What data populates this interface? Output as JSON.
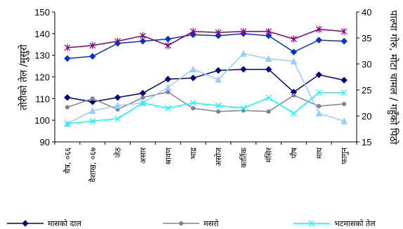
{
  "chart_data": {
    "type": "line",
    "categories": [
      "चैत्र, ०६६",
      "वैशाख, ०६७",
      "जेठ",
      "असार",
      "श्रावण",
      "भाद्र",
      "असोज",
      "कार्तिक",
      "मंसिर",
      "पौष",
      "माघ",
      "फागुन"
    ],
    "left_axis": {
      "label": "तोरीको तेल /मुसुरो",
      "range": [
        90,
        150
      ],
      "ticks": [
        90,
        100,
        110,
        120,
        130,
        140,
        150
      ]
    },
    "right_axis": {
      "label": "पाल्पा गोरु, मोटा चामल / गहुँको पिठो",
      "range": [
        15,
        40
      ],
      "ticks": [
        15,
        20,
        25,
        30,
        35,
        40
      ]
    },
    "series": [
      {
        "axis": "left",
        "color": "#0033cc",
        "marker": "diamond",
        "values": [
          128.5,
          129.5,
          135.5,
          136.5,
          137.5,
          139.5,
          139.0,
          140.0,
          139.0,
          131.5,
          137.0,
          136.5
        ]
      },
      {
        "axis": "left",
        "color": "#800080",
        "marker": "star",
        "values": [
          133.5,
          134.5,
          136.5,
          139.0,
          134.5,
          141.0,
          140.5,
          141.0,
          141.0,
          137.5,
          142.0,
          141.0
        ]
      },
      {
        "axis": "left",
        "color": "#000080",
        "marker": "diamond",
        "values": [
          110.5,
          108.5,
          110.5,
          112.5,
          119.0,
          119.5,
          123.0,
          123.5,
          123.5,
          113.0,
          121.0,
          118.5
        ]
      },
      {
        "axis": "left",
        "color": "#80809a",
        "marker": "circle",
        "values": [
          106.0,
          110.0,
          105.0,
          110.5,
          113.0,
          105.5,
          104.0,
          104.5,
          104.0,
          111.5,
          106.5,
          107.5
        ]
      },
      {
        "axis": "right",
        "color": "#99ccff",
        "marker": "triangle",
        "values": [
          18.5,
          21.0,
          22.0,
          22.5,
          25.5,
          29.0,
          27.0,
          32.0,
          31.0,
          30.5,
          20.5,
          19.0
        ]
      },
      {
        "axis": "right",
        "color": "#00ffff",
        "marker": "x",
        "values": [
          18.5,
          19.0,
          19.5,
          22.5,
          21.5,
          22.5,
          22.0,
          21.5,
          23.5,
          20.5,
          24.5,
          24.5
        ]
      }
    ],
    "legend": [
      {
        "name": "मासको दाल",
        "color": "#000080",
        "marker": "diamond"
      },
      {
        "name": "मसरो",
        "color": "#80809a",
        "marker": "circle"
      },
      {
        "name": "भटमासको तेल",
        "color": "#00ffff",
        "marker": "x"
      }
    ],
    "legend_position": "bottom",
    "grid": false
  }
}
